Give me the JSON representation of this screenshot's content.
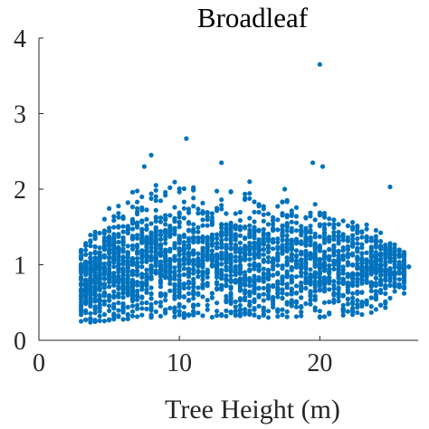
{
  "chart_data": {
    "type": "scatter",
    "title": "Broadleaf",
    "xlabel": "Tree Height (m)",
    "ylabel": "",
    "xlim": [
      0,
      27
    ],
    "ylim": [
      0,
      4
    ],
    "xticks": [
      0,
      10,
      20
    ],
    "yticks": [
      0,
      1,
      2,
      3,
      4
    ],
    "xtick_labels": [
      "0",
      "10",
      "20"
    ],
    "ytick_labels": [
      "0",
      "1",
      "2",
      "3",
      "4"
    ],
    "grid": false,
    "legend": "none",
    "marker_color": "#0072BD",
    "series": [
      {
        "x_range": [
          3,
          26.2
        ],
        "outliers": [
          {
            "x": 20.0,
            "y": 3.65
          },
          {
            "x": 10.5,
            "y": 2.67
          },
          {
            "x": 8.0,
            "y": 2.45
          },
          {
            "x": 19.5,
            "y": 2.35
          },
          {
            "x": 20.2,
            "y": 2.3
          },
          {
            "x": 13.0,
            "y": 2.35
          },
          {
            "x": 25.0,
            "y": 2.03
          },
          {
            "x": 7.5,
            "y": 2.3
          },
          {
            "x": 17.5,
            "y": 2.0
          },
          {
            "x": 15.0,
            "y": 2.1
          }
        ],
        "band_profile": [
          {
            "x": 3,
            "low": 0.2,
            "mid": 0.75,
            "high": 1.2
          },
          {
            "x": 5,
            "low": 0.25,
            "mid": 0.95,
            "high": 1.8
          },
          {
            "x": 8,
            "low": 0.3,
            "mid": 1.1,
            "high": 2.1
          },
          {
            "x": 11,
            "low": 0.3,
            "mid": 1.1,
            "high": 2.1
          },
          {
            "x": 15,
            "low": 0.3,
            "mid": 1.05,
            "high": 1.95
          },
          {
            "x": 20,
            "low": 0.3,
            "mid": 1.0,
            "high": 1.8
          },
          {
            "x": 24,
            "low": 0.35,
            "mid": 0.95,
            "high": 1.5
          },
          {
            "x": 26,
            "low": 0.55,
            "mid": 0.95,
            "high": 1.2
          }
        ],
        "point_count": 2600
      }
    ]
  }
}
